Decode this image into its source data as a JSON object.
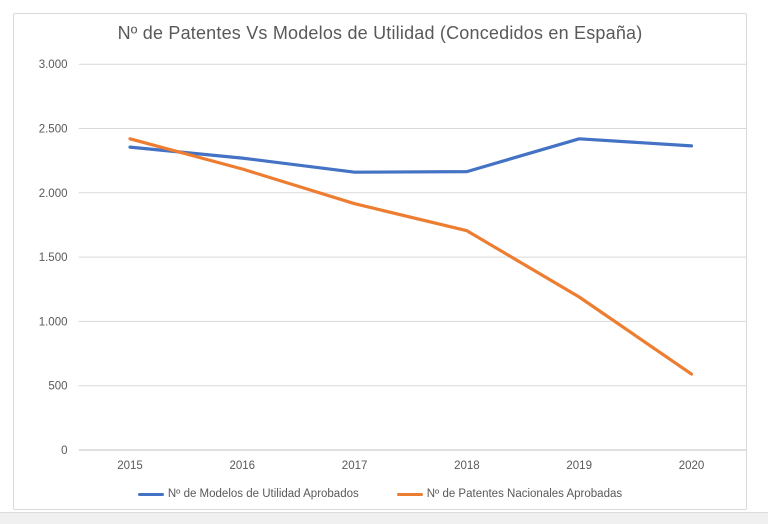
{
  "chart_data": {
    "type": "line",
    "title": "Nº de Patentes Vs Modelos de Utilidad (Concedidos en España)",
    "categories": [
      "2015",
      "2016",
      "2017",
      "2018",
      "2019",
      "2020"
    ],
    "series": [
      {
        "name": "Nº de Modelos de Utilidad Aprobados",
        "color": "#4472C4",
        "values": [
          2355,
          2270,
          2160,
          2165,
          2420,
          2365
        ]
      },
      {
        "name": "Nº de Patentes Nacionales Aprobadas",
        "color": "#ED7D31",
        "values": [
          2420,
          2185,
          1915,
          1705,
          1190,
          590
        ]
      }
    ],
    "xlabel": "",
    "ylabel": "",
    "ylim": [
      0,
      3000
    ],
    "ytick_step": 500,
    "ytick_labels": [
      "0",
      "500",
      "1.000",
      "1.500",
      "2.000",
      "2.500",
      "3.000"
    ],
    "grid": true,
    "legend_position": "bottom",
    "colors": {
      "grid_line": "#d9d9d9",
      "zero_line": "#bfbfbf",
      "tick_text": "#595959",
      "title_text": "#595959",
      "frame_border": "#d9d9d9",
      "background": "#ffffff",
      "footer_strip": "#f0f0f0"
    }
  }
}
